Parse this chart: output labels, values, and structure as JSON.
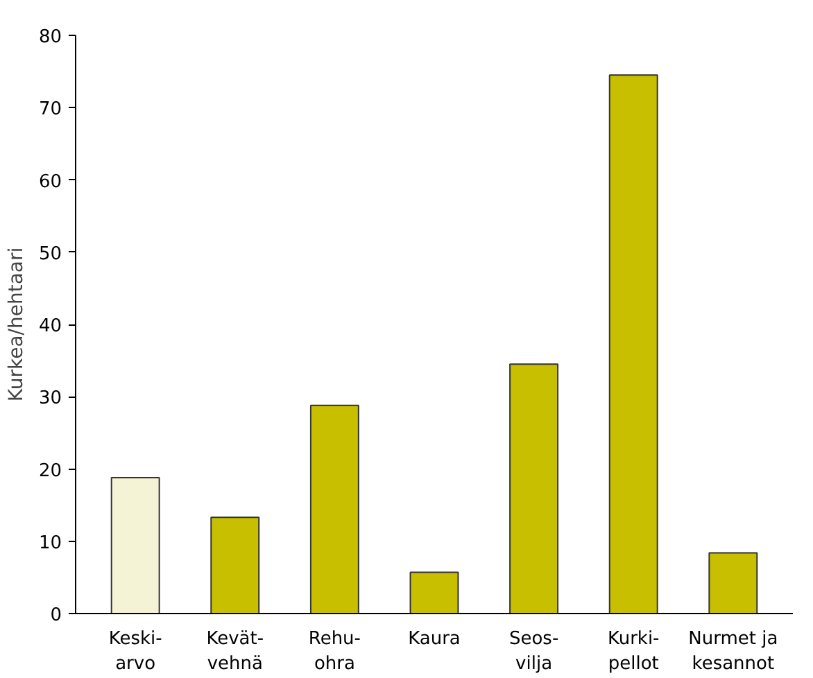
{
  "chart_data": {
    "type": "bar",
    "ylabel": "Kurkea/hehtaari",
    "categories": [
      "Keski-\narvo",
      "Kevät-\nvehnä",
      "Rehu-\nohra",
      "Kaura",
      "Seos-\nvilja",
      "Kurki-\npellot",
      "Nurmet ja\nkesannot"
    ],
    "values": [
      18.8,
      13.3,
      28.8,
      5.7,
      34.5,
      74.5,
      8.4
    ],
    "colors": [
      "#f5f3d6",
      "#c8bf00",
      "#c8bf00",
      "#c8bf00",
      "#c8bf00",
      "#c8bf00",
      "#c8bf00"
    ],
    "ylim": [
      0,
      80
    ],
    "yticks": [
      0,
      10,
      20,
      30,
      40,
      50,
      60,
      70,
      80
    ],
    "grid": false
  }
}
